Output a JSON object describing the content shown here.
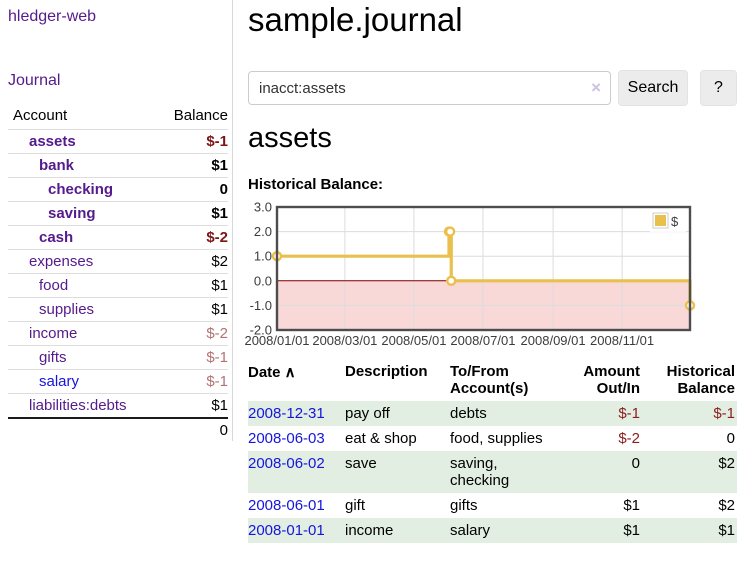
{
  "app_title": "hledger-web",
  "sidebar": {
    "journal_link": "Journal",
    "accounts_table": {
      "headers": {
        "account": "Account",
        "balance": "Balance"
      },
      "rows": [
        {
          "name": "assets",
          "balance": "$-1",
          "indent": 1,
          "bold": true
        },
        {
          "name": "bank",
          "balance": "$1",
          "indent": 2,
          "bold": true
        },
        {
          "name": "checking",
          "balance": "0",
          "indent": 3,
          "bold": true
        },
        {
          "name": "saving",
          "balance": "$1",
          "indent": 3,
          "bold": true
        },
        {
          "name": "cash",
          "balance": "$-2",
          "indent": 2,
          "bold": true
        },
        {
          "name": "expenses",
          "balance": "$2",
          "indent": 1,
          "bold": false
        },
        {
          "name": "food",
          "balance": "$1",
          "indent": 2,
          "bold": false
        },
        {
          "name": "supplies",
          "balance": "$1",
          "indent": 2,
          "bold": false
        },
        {
          "name": "income",
          "balance": "$-2",
          "indent": 1,
          "bold": false
        },
        {
          "name": "gifts",
          "balance": "$-1",
          "indent": 2,
          "bold": false
        },
        {
          "name": "salary",
          "balance": "$-1",
          "indent": 2,
          "bold": false,
          "blue": true
        },
        {
          "name": "liabilities:debts",
          "balance": "$1",
          "indent": 1,
          "bold": false
        }
      ],
      "total": "0"
    }
  },
  "main": {
    "page_title": "sample.journal",
    "search": {
      "value": "inacct:assets",
      "clear_icon": "×",
      "search_button": "Search",
      "help_button": "?"
    },
    "account_heading": "assets",
    "section_label": "Historical Balance:"
  },
  "chart_data": {
    "type": "line",
    "title": "Historical Balance",
    "series": [
      {
        "name": "$",
        "step": true,
        "points": [
          [
            "2008-01-01",
            1
          ],
          [
            "2008-06-01",
            2
          ],
          [
            "2008-06-02",
            2
          ],
          [
            "2008-06-03",
            0
          ],
          [
            "2008-12-31",
            -1
          ]
        ]
      }
    ],
    "x_ticks": [
      "2008/01/01",
      "2008/03/01",
      "2008/05/01",
      "2008/07/01",
      "2008/09/01",
      "2008/11/01"
    ],
    "y_ticks": [
      3.0,
      2.0,
      1.0,
      0.0,
      -1.0,
      -2.0
    ],
    "xlim": [
      "2008-01-01",
      "2008-12-31"
    ],
    "ylim": [
      -2,
      3
    ],
    "legend": {
      "label": "$",
      "position": "top-right"
    },
    "grid": true,
    "negative_region": true,
    "colors": {
      "line": "#e9c04b",
      "marker_fill": "#ffffff",
      "negative_fill": "#f9d8d8",
      "zero_line": "#8b0000",
      "grid": "#dcdcdc",
      "border": "#4d4d4d",
      "tick_text": "#3c3c3c"
    }
  },
  "register": {
    "columns": [
      {
        "label": "Date",
        "sort_icon": "∧",
        "align": "left"
      },
      {
        "label": "Description",
        "align": "left"
      },
      {
        "label": "To/From Account(s)",
        "align": "left"
      },
      {
        "label": "Amount Out/In",
        "align": "right"
      },
      {
        "label": "Historical Balance",
        "align": "right"
      }
    ],
    "rows": [
      {
        "date": "2008-12-31",
        "description": "pay off",
        "accounts": "debts",
        "amount": "$-1",
        "balance": "$-1"
      },
      {
        "date": "2008-06-03",
        "description": "eat & shop",
        "accounts": "food, supplies",
        "amount": "$-2",
        "balance": "0"
      },
      {
        "date": "2008-06-02",
        "description": "save",
        "accounts": "saving, checking",
        "amount": "0",
        "balance": "$2"
      },
      {
        "date": "2008-06-01",
        "description": "gift",
        "accounts": "gifts",
        "amount": "$1",
        "balance": "$2"
      },
      {
        "date": "2008-01-01",
        "description": "income",
        "accounts": "salary",
        "amount": "$1",
        "balance": "$1"
      }
    ]
  }
}
